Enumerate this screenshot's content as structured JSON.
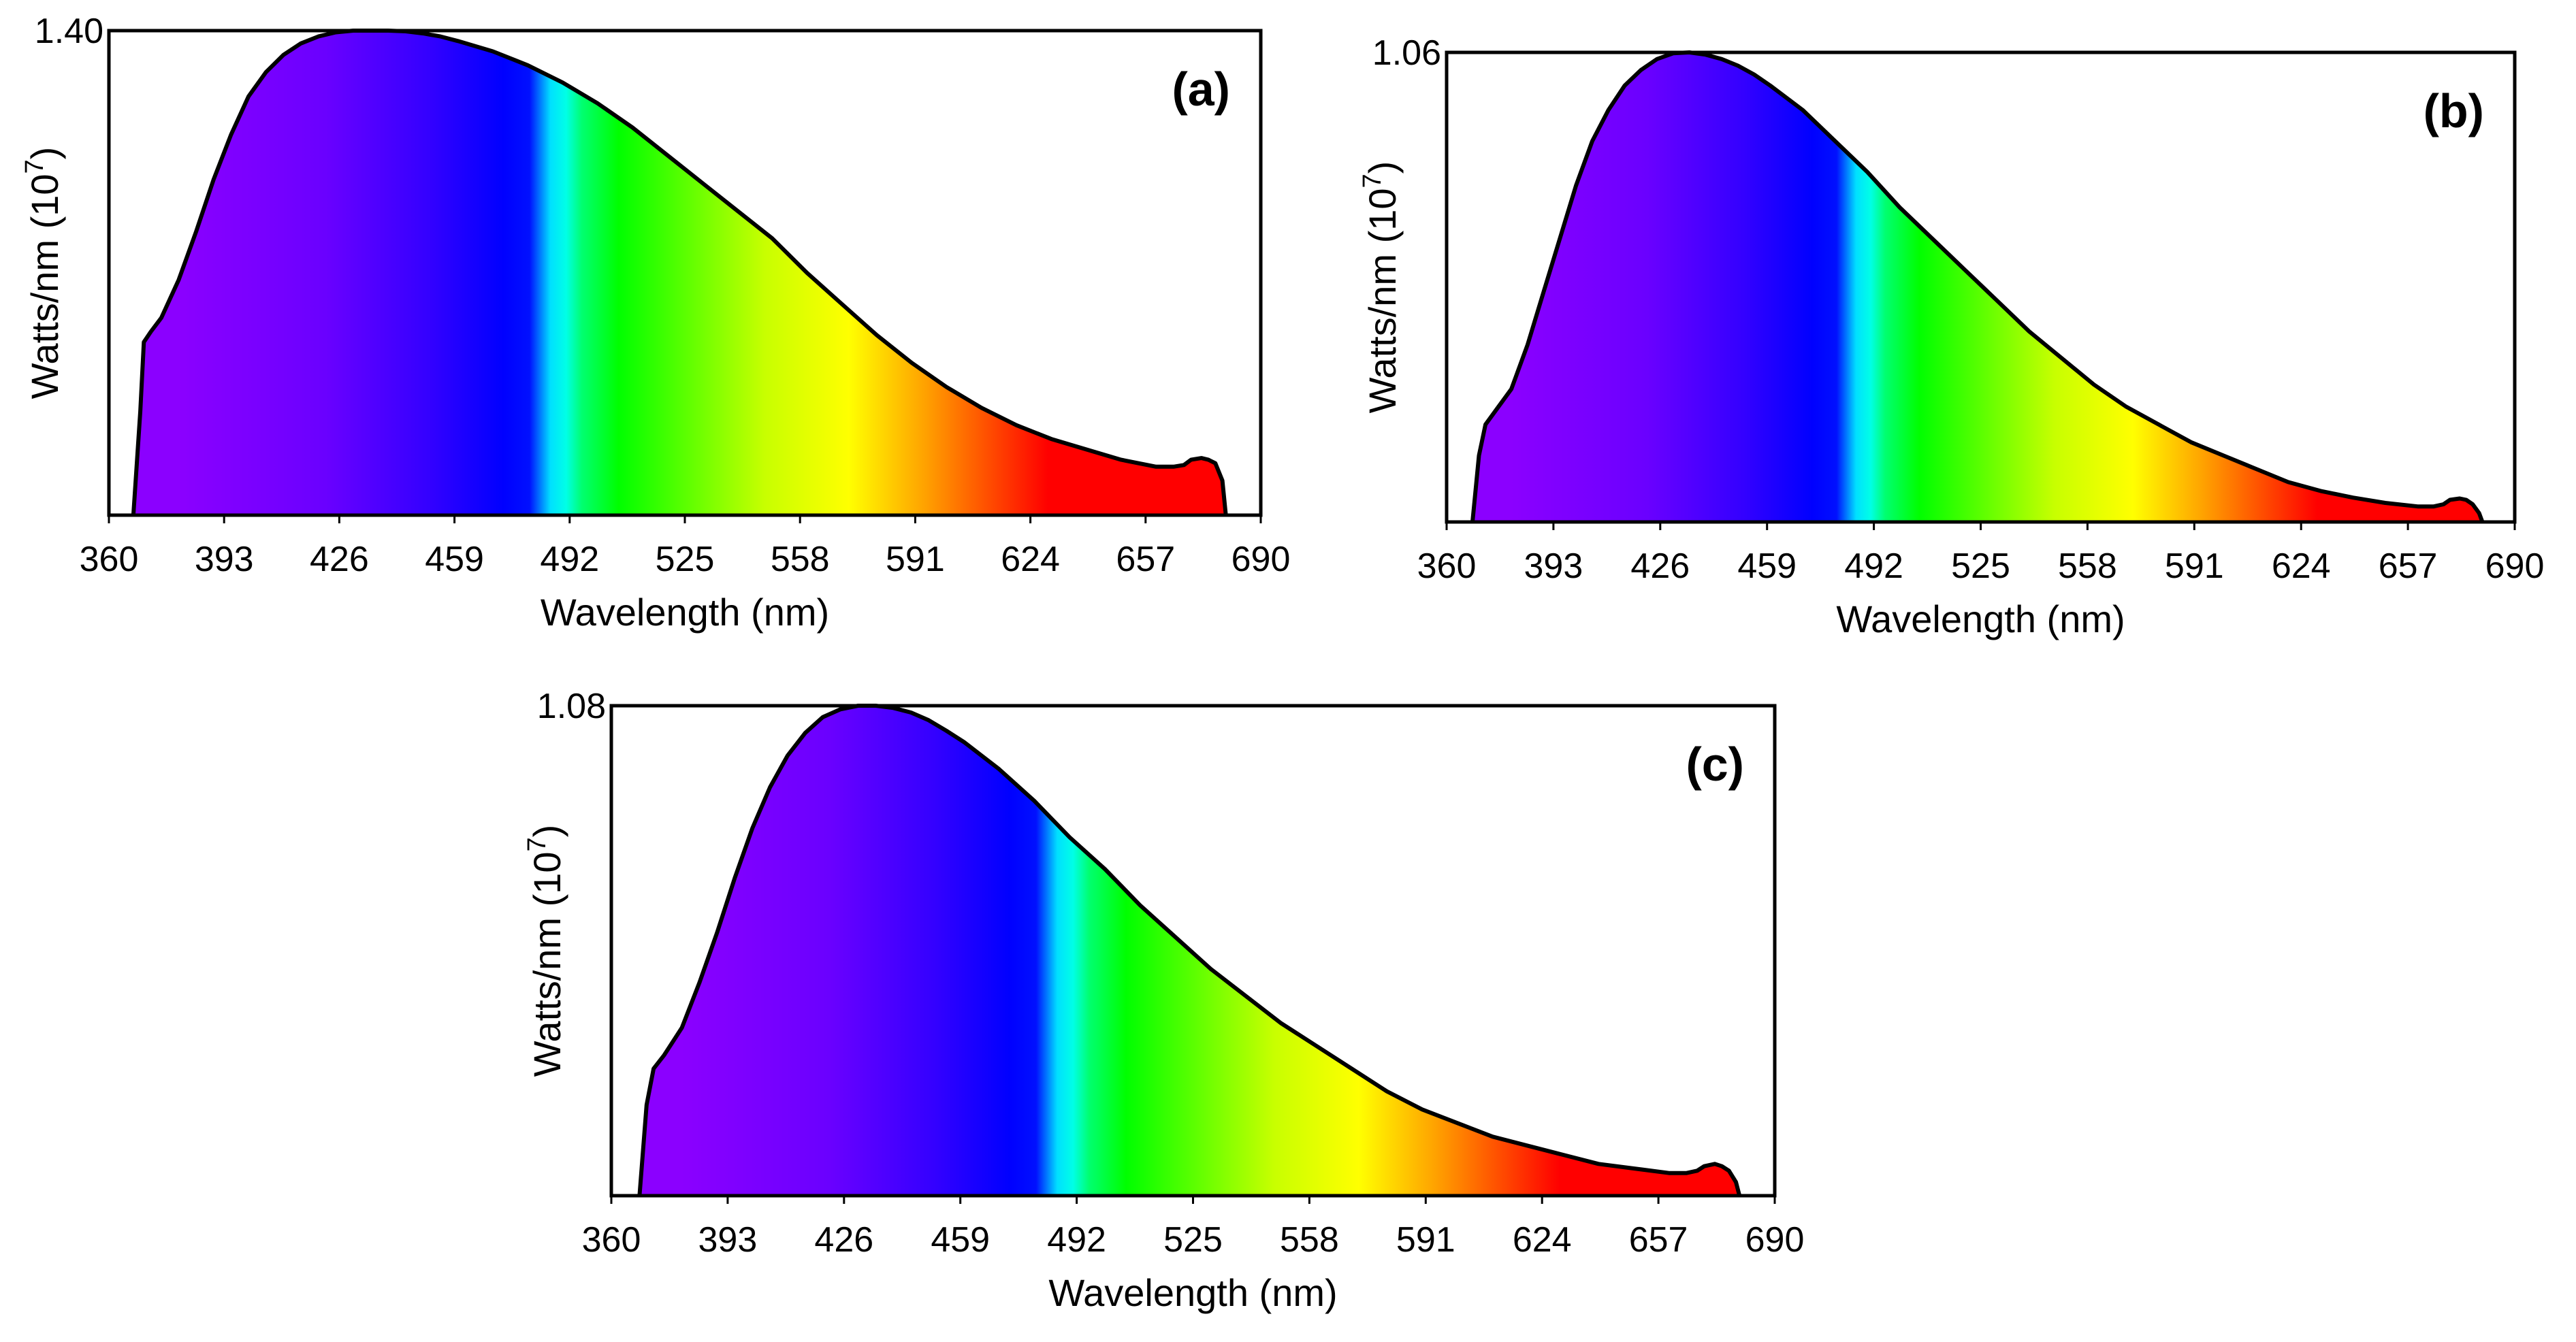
{
  "chart_data": [
    {
      "type": "area",
      "panel_label": "(a)",
      "xlabel": "Wavelength (nm)",
      "ylabel_main": "Watts/nm (10",
      "ylabel_sup": "7",
      "ylabel_tail": ")",
      "xlim": [
        360,
        690
      ],
      "ylim": [
        0,
        1.4
      ],
      "y_tick_label": "1.40",
      "x_ticks": [
        "360",
        "393",
        "426",
        "459",
        "492",
        "525",
        "558",
        "591",
        "624",
        "657",
        "690"
      ],
      "x": [
        367,
        369,
        370,
        372,
        375,
        380,
        385,
        390,
        395,
        400,
        405,
        410,
        415,
        420,
        425,
        430,
        435,
        440,
        445,
        450,
        455,
        460,
        470,
        480,
        490,
        500,
        510,
        520,
        530,
        540,
        550,
        560,
        570,
        580,
        590,
        600,
        610,
        620,
        630,
        640,
        650,
        660,
        665,
        668,
        670,
        673,
        675,
        677,
        679,
        680
      ],
      "y": [
        0,
        0.3,
        0.5,
        0.53,
        0.57,
        0.68,
        0.82,
        0.97,
        1.1,
        1.21,
        1.28,
        1.33,
        1.363,
        1.383,
        1.395,
        1.4,
        1.4,
        1.4,
        1.398,
        1.392,
        1.383,
        1.37,
        1.34,
        1.3,
        1.25,
        1.19,
        1.12,
        1.04,
        0.96,
        0.88,
        0.8,
        0.7,
        0.61,
        0.52,
        0.44,
        0.37,
        0.31,
        0.26,
        0.22,
        0.19,
        0.16,
        0.14,
        0.14,
        0.145,
        0.16,
        0.165,
        0.16,
        0.15,
        0.1,
        0
      ]
    },
    {
      "type": "area",
      "panel_label": "(b)",
      "xlabel": "Wavelength (nm)",
      "ylabel_main": "Watts/nm (10",
      "ylabel_sup": "7",
      "ylabel_tail": ")",
      "xlim": [
        360,
        690
      ],
      "ylim": [
        0,
        1.06
      ],
      "y_tick_label": "1.06",
      "x_ticks": [
        "360",
        "393",
        "426",
        "459",
        "492",
        "525",
        "558",
        "591",
        "624",
        "657",
        "690"
      ],
      "x": [
        368,
        370,
        372,
        375,
        380,
        385,
        390,
        395,
        400,
        405,
        410,
        415,
        420,
        425,
        430,
        435,
        440,
        445,
        450,
        455,
        460,
        470,
        480,
        490,
        500,
        510,
        520,
        530,
        540,
        550,
        560,
        570,
        580,
        590,
        600,
        610,
        620,
        630,
        640,
        650,
        660,
        665,
        668,
        670,
        673,
        675,
        677,
        679,
        680
      ],
      "y": [
        0,
        0.15,
        0.22,
        0.25,
        0.3,
        0.4,
        0.52,
        0.64,
        0.76,
        0.86,
        0.93,
        0.985,
        1.02,
        1.045,
        1.058,
        1.06,
        1.055,
        1.045,
        1.03,
        1.01,
        0.985,
        0.93,
        0.86,
        0.79,
        0.71,
        0.64,
        0.57,
        0.5,
        0.43,
        0.37,
        0.31,
        0.26,
        0.22,
        0.18,
        0.15,
        0.12,
        0.09,
        0.07,
        0.055,
        0.043,
        0.035,
        0.035,
        0.04,
        0.05,
        0.053,
        0.05,
        0.04,
        0.02,
        0
      ]
    },
    {
      "type": "area",
      "panel_label": "(c)",
      "xlabel": "Wavelength (nm)",
      "ylabel_main": "Watts/nm (10",
      "ylabel_sup": "7",
      "ylabel_tail": ")",
      "xlim": [
        360,
        690
      ],
      "ylim": [
        0,
        1.08
      ],
      "y_tick_label": "1.08",
      "x_ticks": [
        "360",
        "393",
        "426",
        "459",
        "492",
        "525",
        "558",
        "591",
        "624",
        "657",
        "690"
      ],
      "x": [
        368,
        370,
        372,
        375,
        380,
        385,
        390,
        395,
        400,
        405,
        410,
        415,
        420,
        425,
        430,
        435,
        440,
        445,
        450,
        455,
        460,
        470,
        480,
        490,
        500,
        510,
        520,
        530,
        540,
        550,
        560,
        570,
        580,
        590,
        600,
        610,
        620,
        630,
        640,
        650,
        660,
        665,
        668,
        670,
        673,
        675,
        677,
        679,
        680
      ],
      "y": [
        0,
        0.2,
        0.28,
        0.31,
        0.37,
        0.47,
        0.58,
        0.7,
        0.81,
        0.9,
        0.97,
        1.02,
        1.055,
        1.072,
        1.08,
        1.08,
        1.075,
        1.065,
        1.048,
        1.025,
        1.0,
        0.94,
        0.87,
        0.79,
        0.72,
        0.64,
        0.57,
        0.5,
        0.44,
        0.38,
        0.33,
        0.28,
        0.23,
        0.19,
        0.16,
        0.13,
        0.11,
        0.09,
        0.07,
        0.06,
        0.05,
        0.05,
        0.055,
        0.065,
        0.07,
        0.065,
        0.055,
        0.03,
        0
      ]
    }
  ]
}
